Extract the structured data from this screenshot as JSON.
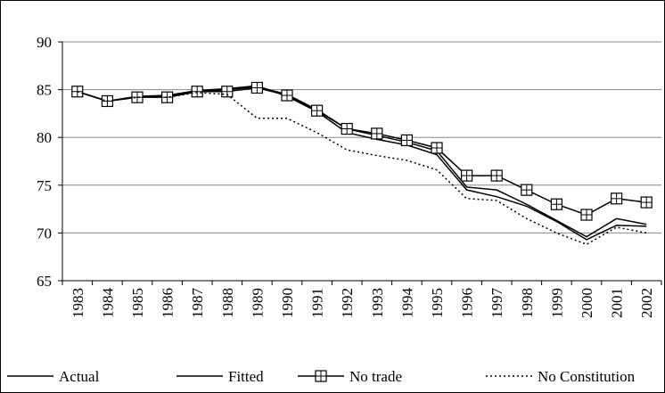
{
  "chart_data": {
    "type": "line",
    "categories": [
      "1983",
      "1984",
      "1985",
      "1986",
      "1987",
      "1988",
      "1989",
      "1990",
      "1991",
      "1992",
      "1993",
      "1994",
      "1995",
      "1996",
      "1997",
      "1998",
      "1999",
      "2000",
      "2001",
      "2002"
    ],
    "series": [
      {
        "name": "Actual",
        "color": "#000000",
        "line_style": "solid",
        "values": [
          84.8,
          83.8,
          84.3,
          84.4,
          84.9,
          85.1,
          85.4,
          84.3,
          82.7,
          80.5,
          79.8,
          79.2,
          78.2,
          74.5,
          73.8,
          72.8,
          71.2,
          69.3,
          70.8,
          70.7
        ]
      },
      {
        "name": "Fitted",
        "color": "#000000",
        "line_style": "solid",
        "values": [
          84.8,
          83.8,
          84.2,
          84.3,
          84.8,
          85.0,
          85.3,
          84.5,
          82.9,
          80.9,
          80.2,
          79.5,
          78.6,
          74.8,
          74.5,
          73.0,
          71.3,
          69.6,
          71.5,
          70.9
        ]
      },
      {
        "name": "No trade",
        "color": "#000000",
        "line_style": "solid",
        "marker": "square-plus",
        "values": [
          84.8,
          83.8,
          84.2,
          84.2,
          84.8,
          84.8,
          85.2,
          84.4,
          82.8,
          80.9,
          80.4,
          79.7,
          78.9,
          76.0,
          76.0,
          74.5,
          73.0,
          71.9,
          73.6,
          73.2
        ]
      },
      {
        "name": "No Constitution",
        "color": "#000000",
        "line_style": "dotted",
        "values": [
          84.8,
          83.8,
          84.2,
          84.2,
          84.7,
          84.5,
          82.0,
          82.0,
          80.5,
          78.7,
          78.1,
          77.6,
          76.6,
          73.6,
          73.4,
          71.5,
          70.0,
          68.8,
          70.6,
          70.0
        ]
      }
    ],
    "ylim": [
      65,
      90
    ],
    "yticks": [
      65,
      70,
      75,
      80,
      85,
      90
    ],
    "grid": true,
    "legend": "bottom"
  }
}
